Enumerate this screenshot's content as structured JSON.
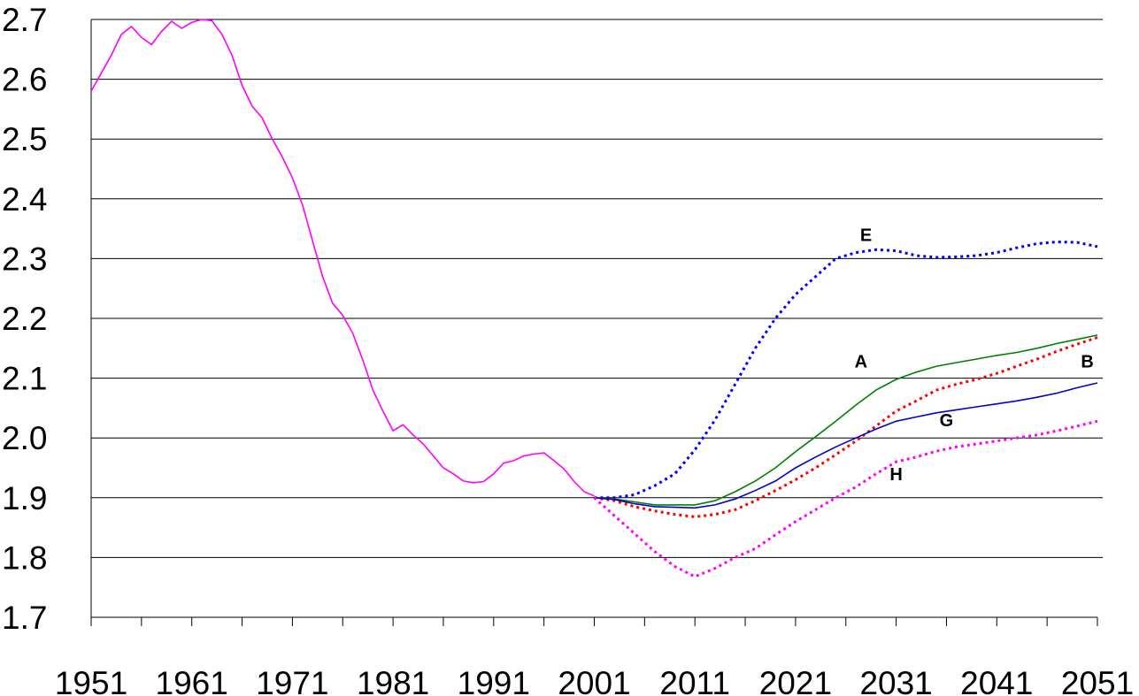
{
  "chart_data": {
    "type": "line",
    "xlim": [
      1951,
      2051
    ],
    "xticks": [
      1951,
      1961,
      1971,
      1981,
      1991,
      2001,
      2011,
      2021,
      2031,
      2041,
      2051
    ],
    "ylim": [
      1.7,
      2.7
    ],
    "yticks": [
      1.7,
      1.8,
      1.9,
      {
        "value": 2,
        "label": "2.0"
      },
      2.1,
      2.2,
      2.3,
      2.4,
      2.5,
      2.6,
      2.7
    ],
    "grid": true,
    "series": [
      {
        "color": "#ff00ff",
        "style": "solid",
        "x": [
          1951,
          1952,
          1953,
          1954,
          1955,
          1956,
          1957,
          1958,
          1959,
          1960,
          1961,
          1962,
          1963,
          1964,
          1965,
          1966,
          1967,
          1968,
          1969,
          1970,
          1971,
          1972,
          1973,
          1974,
          1975,
          1976,
          1977,
          1978,
          1979,
          1980,
          1981,
          1982,
          1983,
          1984,
          1985,
          1986,
          1987,
          1988,
          1989,
          1990,
          1991,
          1992,
          1993,
          1994,
          1995,
          1996,
          1997,
          1998,
          1999,
          2000,
          2001
        ],
        "values": [
          2.58,
          2.61,
          2.64,
          2.675,
          2.688,
          2.67,
          2.658,
          2.68,
          2.697,
          2.685,
          2.695,
          2.7,
          2.698,
          2.675,
          2.64,
          2.59,
          2.555,
          2.535,
          2.5,
          2.47,
          2.435,
          2.39,
          2.33,
          2.27,
          2.225,
          2.205,
          2.175,
          2.13,
          2.08,
          2.045,
          2.012,
          2.022,
          2.005,
          1.99,
          1.97,
          1.95,
          1.94,
          1.928,
          1.925,
          1.927,
          1.94,
          1.958,
          1.962,
          1.97,
          1.973,
          1.975,
          1.962,
          1.948,
          1.927,
          1.91,
          1.903
        ]
      },
      {
        "name": "E",
        "color": "#0000ff",
        "style": "dotted",
        "x": [
          2001,
          2003,
          2005,
          2007,
          2009,
          2011,
          2013,
          2015,
          2017,
          2019,
          2021,
          2023,
          2025,
          2027,
          2029,
          2031,
          2033,
          2035,
          2037,
          2039,
          2041,
          2043,
          2045,
          2047,
          2049,
          2051
        ],
        "values": [
          1.9,
          1.9,
          1.905,
          1.92,
          1.94,
          1.98,
          2.03,
          2.09,
          2.15,
          2.2,
          2.24,
          2.27,
          2.3,
          2.31,
          2.315,
          2.313,
          2.305,
          2.302,
          2.303,
          2.305,
          2.31,
          2.318,
          2.325,
          2.328,
          2.327,
          2.32
        ]
      },
      {
        "name": "A",
        "color": "#008000",
        "style": "solid",
        "x": [
          2001,
          2003,
          2005,
          2007,
          2009,
          2011,
          2013,
          2015,
          2017,
          2019,
          2021,
          2023,
          2025,
          2027,
          2029,
          2031,
          2033,
          2035,
          2037,
          2039,
          2041,
          2043,
          2045,
          2047,
          2049,
          2051
        ],
        "values": [
          1.9,
          1.898,
          1.893,
          1.888,
          1.888,
          1.888,
          1.895,
          1.91,
          1.928,
          1.95,
          1.977,
          2.002,
          2.028,
          2.055,
          2.08,
          2.098,
          2.11,
          2.12,
          2.126,
          2.132,
          2.138,
          2.143,
          2.15,
          2.158,
          2.165,
          2.172
        ]
      },
      {
        "name": "B",
        "color": "#ff0000",
        "style": "dotted",
        "x": [
          2001,
          2003,
          2005,
          2007,
          2009,
          2011,
          2013,
          2015,
          2017,
          2019,
          2021,
          2023,
          2025,
          2027,
          2029,
          2031,
          2033,
          2035,
          2037,
          2039,
          2041,
          2043,
          2045,
          2047,
          2049,
          2051
        ],
        "values": [
          1.9,
          1.895,
          1.885,
          1.878,
          1.872,
          1.868,
          1.872,
          1.88,
          1.895,
          1.912,
          1.93,
          1.95,
          1.972,
          1.995,
          2.02,
          2.045,
          2.062,
          2.08,
          2.09,
          2.098,
          2.108,
          2.12,
          2.132,
          2.145,
          2.157,
          2.168
        ]
      },
      {
        "name": "G",
        "color": "#0000cc",
        "style": "solid",
        "x": [
          2001,
          2003,
          2005,
          2007,
          2009,
          2011,
          2013,
          2015,
          2017,
          2019,
          2021,
          2023,
          2025,
          2027,
          2029,
          2031,
          2033,
          2035,
          2037,
          2039,
          2041,
          2043,
          2045,
          2047,
          2049,
          2051
        ],
        "values": [
          1.9,
          1.897,
          1.89,
          1.885,
          1.884,
          1.883,
          1.888,
          1.898,
          1.912,
          1.928,
          1.95,
          1.968,
          1.985,
          2.0,
          2.015,
          2.028,
          2.035,
          2.042,
          2.047,
          2.052,
          2.057,
          2.062,
          2.068,
          2.075,
          2.084,
          2.092
        ]
      },
      {
        "name": "H",
        "color": "#ff00ff",
        "style": "dotted",
        "x": [
          2001,
          2003,
          2005,
          2007,
          2009,
          2011,
          2013,
          2015,
          2017,
          2019,
          2021,
          2023,
          2025,
          2027,
          2029,
          2031,
          2033,
          2035,
          2037,
          2039,
          2041,
          2043,
          2045,
          2047,
          2049,
          2051
        ],
        "values": [
          1.9,
          1.87,
          1.84,
          1.81,
          1.785,
          1.768,
          1.782,
          1.8,
          1.815,
          1.838,
          1.86,
          1.88,
          1.9,
          1.918,
          1.94,
          1.96,
          1.968,
          1.978,
          1.985,
          1.99,
          1.995,
          2.0,
          2.005,
          2.012,
          2.02,
          2.028
        ]
      }
    ]
  }
}
